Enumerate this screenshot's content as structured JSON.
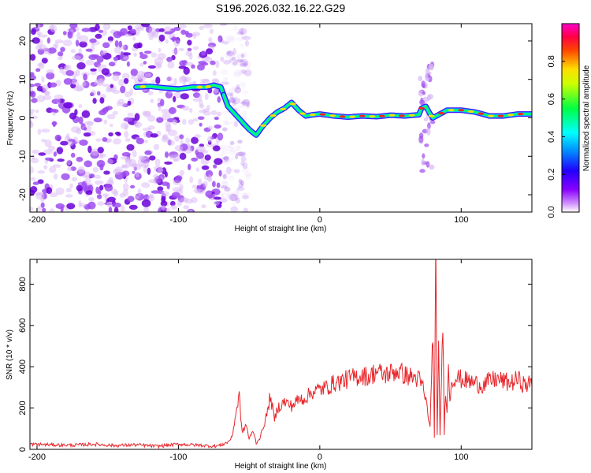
{
  "figure": {
    "title": "S196.2026.032.16.22.G29"
  },
  "chart_data": [
    {
      "type": "heatmap",
      "title": "S196.2026.032.16.22.G29",
      "xlabel": "Height of straight line (km)",
      "ylabel": "Frequency (Hz)",
      "xlim": [
        -205,
        150
      ],
      "ylim": [
        -24.5,
        24.5
      ],
      "xticks": [
        -200,
        -100,
        0,
        100
      ],
      "xtick_labels": [
        "-200",
        "-100",
        "0",
        "100"
      ],
      "yticks": [
        20,
        10,
        0,
        -10,
        -20
      ],
      "ytick_labels": [
        "20",
        "10",
        "0",
        "-10",
        "-20"
      ],
      "colorbar": {
        "label": "Normalized spectral amplitude",
        "range": [
          0,
          1
        ],
        "ticks": [
          0.8,
          0.6,
          0.4,
          0.2,
          0.0
        ],
        "tick_labels": [
          "0.8",
          "0.6",
          "0.4",
          "0.2",
          "0.0"
        ],
        "colormap": [
          "#ff00ff",
          "#ff0000",
          "#ffff00",
          "#00ff00",
          "#00ffff",
          "#0000ff",
          "#aa00ff"
        ]
      },
      "ridge": {
        "description_x": [
          -130,
          -120,
          -110,
          -100,
          -90,
          -80,
          -75,
          -70,
          -65,
          -60,
          -55,
          -50,
          -45,
          -40,
          -35,
          -30,
          -25,
          -20,
          -15,
          -10,
          -5,
          0,
          10,
          20,
          30,
          40,
          50,
          60,
          70,
          72,
          75,
          78,
          80,
          85,
          90,
          100,
          110,
          120,
          130,
          140,
          150
        ],
        "frequency_hz": [
          8,
          8.2,
          7.8,
          7.5,
          8,
          8,
          8.5,
          8,
          3,
          1,
          -1,
          -3,
          -4.5,
          -2,
          0,
          1.5,
          2.5,
          4,
          2,
          0.5,
          0.8,
          1,
          0.5,
          0.2,
          0.5,
          0.3,
          0.7,
          0.5,
          0.8,
          2.5,
          3,
          1,
          0,
          1,
          2,
          2,
          1.5,
          0.5,
          0.5,
          1,
          1
        ]
      },
      "noise_region_x": [
        -205,
        -70
      ],
      "colormap_levels": {
        "low": "#d9b8f5",
        "mid": "#9e4cf0",
        "high": "#6a00d8"
      }
    },
    {
      "type": "line",
      "xlabel": "Height of straight line (km)",
      "ylabel": "SNR (10 * v/v)",
      "xlim": [
        -205,
        150
      ],
      "ylim": [
        0,
        920
      ],
      "xticks": [
        -200,
        -100,
        0,
        100
      ],
      "xtick_labels": [
        "-200",
        "-100",
        "0",
        "100"
      ],
      "yticks": [
        800,
        600,
        400,
        200,
        0
      ],
      "ytick_labels": [
        "800",
        "600",
        "400",
        "200",
        "0"
      ],
      "series": [
        {
          "name": "SNR",
          "color": "#e8262b",
          "x": [
            -205,
            -190,
            -175,
            -160,
            -145,
            -130,
            -115,
            -100,
            -85,
            -75,
            -70,
            -65,
            -62,
            -60,
            -57,
            -55,
            -52,
            -50,
            -47,
            -45,
            -42,
            -40,
            -37,
            -35,
            -32,
            -30,
            -25,
            -20,
            -15,
            -10,
            -5,
            0,
            5,
            10,
            15,
            20,
            25,
            30,
            35,
            40,
            45,
            50,
            55,
            60,
            65,
            70,
            73,
            76,
            78,
            80,
            81,
            82,
            83,
            84,
            85,
            86,
            87,
            88,
            89,
            90,
            91,
            92,
            93,
            95,
            100,
            105,
            110,
            115,
            120,
            125,
            130,
            135,
            140,
            145,
            150
          ],
          "y": [
            25,
            22,
            20,
            25,
            18,
            22,
            15,
            25,
            20,
            15,
            20,
            35,
            60,
            150,
            260,
            80,
            120,
            50,
            90,
            30,
            60,
            110,
            180,
            260,
            140,
            200,
            230,
            210,
            240,
            250,
            280,
            290,
            300,
            320,
            330,
            340,
            350,
            360,
            350,
            380,
            360,
            370,
            380,
            360,
            350,
            340,
            300,
            200,
            100,
            600,
            50,
            900,
            80,
            500,
            60,
            350,
            620,
            80,
            300,
            200,
            380,
            250,
            320,
            350,
            340,
            330,
            320,
            310,
            330,
            340,
            330,
            320,
            340,
            310,
            320
          ],
          "extremes": {
            "peak_x": 82,
            "peak_y": 910
          }
        }
      ]
    }
  ]
}
